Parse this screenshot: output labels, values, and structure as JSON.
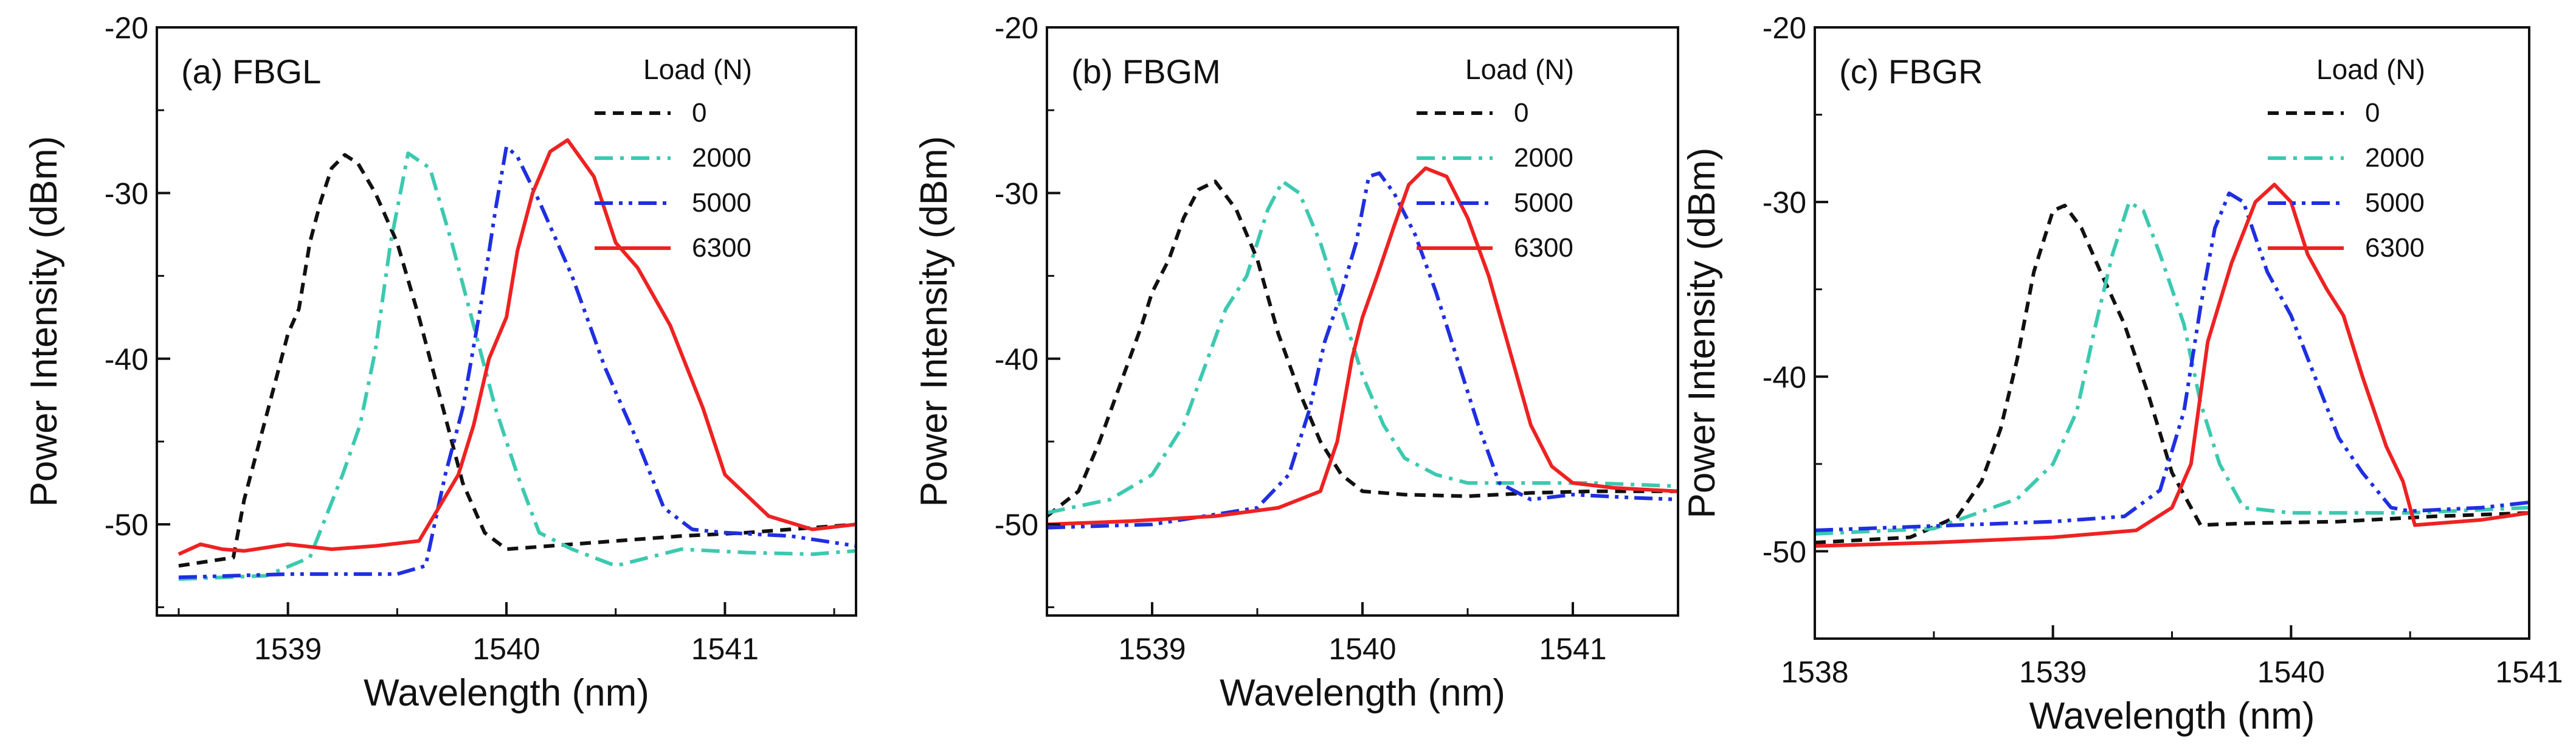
{
  "figure": {
    "series_colors": {
      "0": "#111111",
      "2000": "#3cc9b0",
      "5000": "#1f2fe0",
      "6300": "#ee2222"
    }
  },
  "chart_data": [
    {
      "type": "line",
      "panel_label": "(a) FBGL",
      "xlabel": "Wavelength (nm)",
      "ylabel": "Power Intensity (dBm)",
      "xlim": [
        1538.4,
        1541.6
      ],
      "ylim": [
        -55.5,
        -20
      ],
      "xticks": [
        1539,
        1540,
        1541
      ],
      "yticks": [
        -20,
        -30,
        -40,
        -50
      ],
      "legend": {
        "title": "Load (N)",
        "position": "top-right"
      },
      "series": [
        {
          "name": "0",
          "style": "dash",
          "x": [
            1538.5,
            1538.75,
            1538.8,
            1538.87,
            1538.93,
            1539.0,
            1539.05,
            1539.1,
            1539.15,
            1539.2,
            1539.26,
            1539.32,
            1539.4,
            1539.5,
            1539.6,
            1539.7,
            1539.8,
            1539.9,
            1540.0,
            1540.2,
            1540.5,
            1540.8,
            1541.1,
            1541.4,
            1541.6
          ],
          "y": [
            -52.5,
            -52.0,
            -48.5,
            -45.0,
            -42.0,
            -38.5,
            -37.0,
            -33.0,
            -30.5,
            -28.5,
            -27.7,
            -28.2,
            -30.0,
            -33.0,
            -37.5,
            -42.5,
            -47.5,
            -50.5,
            -51.5,
            -51.3,
            -51.0,
            -50.7,
            -50.5,
            -50.2,
            -50.0
          ]
        },
        {
          "name": "2000",
          "style": "dashdot",
          "x": [
            1538.5,
            1538.9,
            1539.1,
            1539.25,
            1539.33,
            1539.4,
            1539.47,
            1539.55,
            1539.65,
            1539.75,
            1539.85,
            1539.95,
            1540.05,
            1540.15,
            1540.3,
            1540.5,
            1540.8,
            1541.1,
            1541.4,
            1541.6
          ],
          "y": [
            -53.3,
            -53.1,
            -52.0,
            -47.0,
            -44.0,
            -39.5,
            -33.0,
            -27.6,
            -28.5,
            -33.0,
            -38.0,
            -43.0,
            -47.0,
            -50.5,
            -51.5,
            -52.5,
            -51.5,
            -51.7,
            -51.8,
            -51.6
          ]
        },
        {
          "name": "5000",
          "style": "dashdotdot",
          "x": [
            1538.5,
            1539.0,
            1539.5,
            1539.63,
            1539.72,
            1539.8,
            1539.88,
            1539.95,
            1540.0,
            1540.05,
            1540.15,
            1540.3,
            1540.45,
            1540.6,
            1540.72,
            1540.85,
            1541.0,
            1541.3,
            1541.6
          ],
          "y": [
            -53.2,
            -53.0,
            -53.0,
            -52.5,
            -47.0,
            -43.0,
            -37.0,
            -31.0,
            -27.2,
            -27.8,
            -30.5,
            -35.0,
            -40.5,
            -45.0,
            -49.0,
            -50.3,
            -50.5,
            -50.7,
            -51.3
          ]
        },
        {
          "name": "6300",
          "style": "solid",
          "x": [
            1538.5,
            1538.6,
            1538.7,
            1538.8,
            1539.0,
            1539.2,
            1539.4,
            1539.6,
            1539.78,
            1539.85,
            1539.92,
            1540.0,
            1540.05,
            1540.12,
            1540.2,
            1540.28,
            1540.4,
            1540.5,
            1540.6,
            1540.75,
            1540.9,
            1541.0,
            1541.2,
            1541.4,
            1541.6
          ],
          "y": [
            -51.8,
            -51.2,
            -51.5,
            -51.6,
            -51.2,
            -51.5,
            -51.3,
            -51.0,
            -47.0,
            -44.0,
            -40.0,
            -37.5,
            -33.5,
            -30.0,
            -27.5,
            -26.8,
            -29.0,
            -33.0,
            -34.5,
            -38.0,
            -43.0,
            -47.0,
            -49.5,
            -50.3,
            -50.0
          ]
        }
      ]
    },
    {
      "type": "line",
      "panel_label": "(b) FBGM",
      "xlabel": "Wavelength (nm)",
      "ylabel": "Power Intensity (dBm)",
      "xlim": [
        1538.5,
        1541.5
      ],
      "ylim": [
        -55.5,
        -20
      ],
      "xticks": [
        1539,
        1540,
        1541
      ],
      "yticks": [
        -20,
        -30,
        -40,
        -50
      ],
      "legend": {
        "title": "Load (N)",
        "position": "top-right"
      },
      "series": [
        {
          "name": "0",
          "style": "dash",
          "x": [
            1538.5,
            1538.65,
            1538.75,
            1538.85,
            1538.95,
            1539.0,
            1539.08,
            1539.15,
            1539.22,
            1539.3,
            1539.4,
            1539.5,
            1539.6,
            1539.7,
            1539.8,
            1539.9,
            1540.0,
            1540.2,
            1540.5,
            1540.8,
            1541.1,
            1541.5
          ],
          "y": [
            -49.5,
            -48.0,
            -45.0,
            -41.5,
            -38.0,
            -36.0,
            -34.0,
            -31.5,
            -29.8,
            -29.3,
            -31.0,
            -34.0,
            -38.5,
            -42.0,
            -45.0,
            -47.0,
            -48.0,
            -48.2,
            -48.3,
            -48.1,
            -48.0,
            -48.0
          ]
        },
        {
          "name": "2000",
          "style": "dashdot",
          "x": [
            1538.5,
            1538.8,
            1539.0,
            1539.15,
            1539.25,
            1539.35,
            1539.45,
            1539.55,
            1539.62,
            1539.7,
            1539.8,
            1539.9,
            1540.0,
            1540.1,
            1540.2,
            1540.35,
            1540.5,
            1540.8,
            1541.1,
            1541.5
          ],
          "y": [
            -49.3,
            -48.5,
            -47.0,
            -44.0,
            -40.5,
            -37.0,
            -35.0,
            -31.0,
            -29.3,
            -30.0,
            -33.0,
            -37.0,
            -41.0,
            -44.0,
            -46.0,
            -47.0,
            -47.5,
            -47.5,
            -47.5,
            -47.7
          ]
        },
        {
          "name": "5000",
          "style": "dashdotdot",
          "x": [
            1538.5,
            1539.0,
            1539.5,
            1539.65,
            1539.75,
            1539.82,
            1539.9,
            1539.97,
            1540.03,
            1540.08,
            1540.15,
            1540.25,
            1540.35,
            1540.45,
            1540.55,
            1540.65,
            1540.8,
            1541.0,
            1541.3,
            1541.5
          ],
          "y": [
            -50.2,
            -50.0,
            -49.0,
            -47.0,
            -43.0,
            -39.0,
            -36.0,
            -33.0,
            -29.0,
            -28.8,
            -30.0,
            -32.5,
            -36.0,
            -40.0,
            -44.0,
            -47.5,
            -48.5,
            -48.2,
            -48.4,
            -48.5
          ]
        },
        {
          "name": "6300",
          "style": "solid",
          "x": [
            1538.5,
            1538.9,
            1539.3,
            1539.6,
            1539.8,
            1539.88,
            1539.95,
            1540.0,
            1540.07,
            1540.15,
            1540.22,
            1540.3,
            1540.4,
            1540.5,
            1540.6,
            1540.7,
            1540.8,
            1540.9,
            1541.0,
            1541.2,
            1541.5
          ],
          "y": [
            -50.0,
            -49.8,
            -49.5,
            -49.0,
            -48.0,
            -45.0,
            -40.0,
            -37.5,
            -35.0,
            -32.0,
            -29.5,
            -28.5,
            -29.0,
            -31.5,
            -35.0,
            -39.5,
            -44.0,
            -46.5,
            -47.5,
            -47.8,
            -48.0
          ]
        }
      ]
    },
    {
      "type": "line",
      "panel_label": "(c) FBGR",
      "xlabel": "Wavelength (nm)",
      "ylabel": "Power Intensity (dBm)",
      "xlim": [
        1538,
        1541
      ],
      "ylim": [
        -55,
        -20
      ],
      "xticks": [
        1538,
        1539,
        1540,
        1541
      ],
      "yticks": [
        -20,
        -30,
        -40,
        -50
      ],
      "legend": {
        "title": "Load (N)",
        "position": "top-right"
      },
      "series": [
        {
          "name": "0",
          "style": "dash",
          "x": [
            1538.0,
            1538.4,
            1538.6,
            1538.7,
            1538.78,
            1538.85,
            1538.92,
            1539.0,
            1539.05,
            1539.12,
            1539.2,
            1539.3,
            1539.4,
            1539.5,
            1539.58,
            1539.62,
            1539.8,
            1540.2,
            1540.6,
            1541.0
          ],
          "y": [
            -49.5,
            -49.2,
            -48.0,
            -46.0,
            -43.0,
            -39.0,
            -34.0,
            -30.5,
            -30.2,
            -31.5,
            -34.0,
            -37.0,
            -41.0,
            -45.5,
            -47.5,
            -48.5,
            -48.4,
            -48.3,
            -48.0,
            -47.8
          ]
        },
        {
          "name": "2000",
          "style": "dashdot",
          "x": [
            1538.0,
            1538.5,
            1538.85,
            1539.0,
            1539.1,
            1539.18,
            1539.25,
            1539.32,
            1539.38,
            1539.45,
            1539.55,
            1539.62,
            1539.7,
            1539.8,
            1540.0,
            1540.5,
            1541.0
          ],
          "y": [
            -49.0,
            -48.7,
            -47.0,
            -45.0,
            -42.0,
            -37.0,
            -33.0,
            -30.0,
            -30.5,
            -33.0,
            -37.0,
            -41.5,
            -45.0,
            -47.5,
            -47.8,
            -47.8,
            -47.5
          ]
        },
        {
          "name": "5000",
          "style": "dashdotdot",
          "x": [
            1538.0,
            1538.6,
            1539.0,
            1539.3,
            1539.45,
            1539.55,
            1539.62,
            1539.68,
            1539.74,
            1539.8,
            1539.9,
            1540.0,
            1540.1,
            1540.2,
            1540.3,
            1540.42,
            1540.5,
            1540.8,
            1541.0
          ],
          "y": [
            -48.8,
            -48.5,
            -48.3,
            -48.0,
            -46.5,
            -42.0,
            -36.0,
            -31.5,
            -29.5,
            -30.0,
            -34.0,
            -36.5,
            -40.0,
            -43.5,
            -45.5,
            -47.5,
            -47.7,
            -47.5,
            -47.2
          ]
        },
        {
          "name": "6300",
          "style": "solid",
          "x": [
            1538.0,
            1538.5,
            1539.0,
            1539.35,
            1539.5,
            1539.58,
            1539.65,
            1539.75,
            1539.85,
            1539.93,
            1540.0,
            1540.07,
            1540.15,
            1540.22,
            1540.3,
            1540.4,
            1540.47,
            1540.52,
            1540.8,
            1541.0
          ],
          "y": [
            -49.7,
            -49.5,
            -49.2,
            -48.8,
            -47.5,
            -45.0,
            -38.0,
            -33.5,
            -30.0,
            -29.0,
            -30.0,
            -33.0,
            -35.0,
            -36.5,
            -40.0,
            -44.0,
            -46.0,
            -48.5,
            -48.2,
            -47.8
          ]
        }
      ]
    }
  ]
}
